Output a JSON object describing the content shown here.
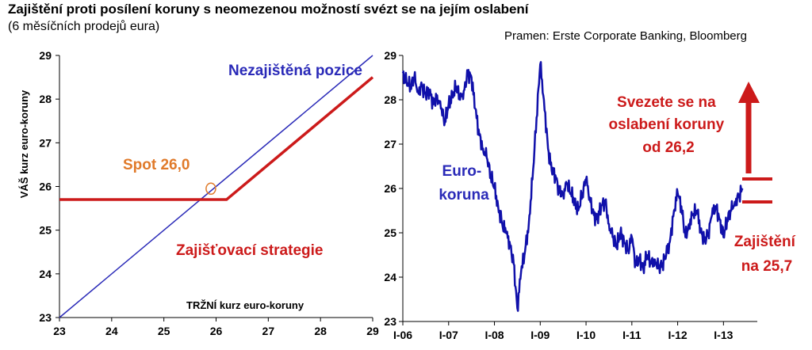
{
  "title": "Zajištění proti posílení koruny s neomezenou možností svézt se na jejím oslabení",
  "subtitle": "(6 měsíčních prodejů eura)",
  "source": "Pramen: Erste Corporate Banking, Bloomberg",
  "colors": {
    "blue": "#2a2ab8",
    "red": "#cc1a1a",
    "orange": "#e07a2a",
    "navy": "#1010aa"
  },
  "chart_data": [
    {
      "type": "line",
      "xlabel": "TRŽNÍ kurz euro-koruny",
      "ylabel": "VÁŠ kurz euro-koruny",
      "xlim": [
        23,
        29
      ],
      "ylim": [
        23,
        29
      ],
      "xticks": [
        "23",
        "24",
        "25",
        "26",
        "27",
        "28",
        "29"
      ],
      "yticks": [
        "23",
        "24",
        "25",
        "26",
        "27",
        "28",
        "29"
      ],
      "series": [
        {
          "name": "Nezajištěná pozice",
          "x": [
            23,
            29
          ],
          "y": [
            23,
            29
          ],
          "color": "#2a2ab8"
        },
        {
          "name": "Zajišťovací strategie",
          "x": [
            23,
            26.2,
            29
          ],
          "y": [
            25.7,
            25.7,
            28.5
          ],
          "color": "#cc1a1a"
        }
      ],
      "annotations": {
        "spot": "Spot 26,0",
        "spot_x": 25.9,
        "spot_y": 25.95
      }
    },
    {
      "type": "line",
      "xticks": [
        "I-06",
        "I-07",
        "I-08",
        "I-09",
        "I-10",
        "I-11",
        "I-12",
        "I-13"
      ],
      "ylim": [
        23,
        29
      ],
      "yticks": [
        "23",
        "24",
        "25",
        "26",
        "27",
        "28",
        "29"
      ],
      "series": [
        {
          "name": "Euro-koruna",
          "color": "#1010aa",
          "x": [
            2006.0,
            2006.08,
            2006.17,
            2006.25,
            2006.33,
            2006.42,
            2006.5,
            2006.58,
            2006.67,
            2006.75,
            2006.83,
            2006.92,
            2007.0,
            2007.08,
            2007.17,
            2007.25,
            2007.33,
            2007.42,
            2007.5,
            2007.58,
            2007.67,
            2007.75,
            2007.83,
            2007.92,
            2008.0,
            2008.08,
            2008.17,
            2008.25,
            2008.33,
            2008.42,
            2008.5,
            2008.58,
            2008.67,
            2008.75,
            2008.83,
            2008.92,
            2009.0,
            2009.08,
            2009.17,
            2009.25,
            2009.33,
            2009.42,
            2009.5,
            2009.58,
            2009.67,
            2009.75,
            2009.83,
            2009.92,
            2010.0,
            2010.08,
            2010.17,
            2010.25,
            2010.33,
            2010.42,
            2010.5,
            2010.58,
            2010.67,
            2010.75,
            2010.83,
            2010.92,
            2011.0,
            2011.08,
            2011.17,
            2011.25,
            2011.33,
            2011.42,
            2011.5,
            2011.58,
            2011.67,
            2011.75,
            2011.83,
            2011.92,
            2012.0,
            2012.08,
            2012.17,
            2012.25,
            2012.33,
            2012.42,
            2012.5,
            2012.58,
            2012.67,
            2012.75,
            2012.83,
            2012.92,
            2013.0,
            2013.08,
            2013.17,
            2013.25,
            2013.33,
            2013.42
          ],
          "y": [
            28.6,
            28.4,
            28.3,
            28.5,
            28.2,
            28.3,
            28.1,
            28.2,
            27.9,
            28.1,
            27.8,
            27.5,
            27.9,
            28.1,
            28.3,
            28.0,
            28.2,
            28.6,
            28.5,
            27.8,
            27.2,
            26.9,
            26.7,
            26.3,
            26.0,
            25.6,
            25.2,
            25.0,
            24.8,
            24.3,
            23.3,
            24.1,
            24.6,
            25.2,
            26.2,
            27.6,
            28.8,
            28.0,
            26.9,
            26.4,
            26.3,
            25.9,
            25.9,
            26.1,
            25.9,
            25.7,
            25.5,
            25.9,
            26.2,
            25.8,
            25.4,
            25.3,
            25.6,
            25.7,
            25.2,
            24.9,
            24.7,
            25.0,
            24.8,
            24.6,
            24.9,
            24.3,
            24.4,
            24.2,
            24.5,
            24.3,
            24.4,
            24.2,
            24.3,
            24.5,
            24.8,
            25.5,
            25.9,
            25.6,
            24.9,
            25.2,
            25.4,
            25.5,
            25.1,
            24.8,
            25.0,
            25.4,
            25.6,
            25.3,
            24.9,
            25.3,
            25.5,
            25.7,
            25.8,
            26.0
          ]
        }
      ],
      "labels": {
        "series_label": "Euro-koruna",
        "upside": "Svezete se na oslabení koruny od 26,2",
        "floor": "Zajištění na 25,7"
      }
    }
  ]
}
